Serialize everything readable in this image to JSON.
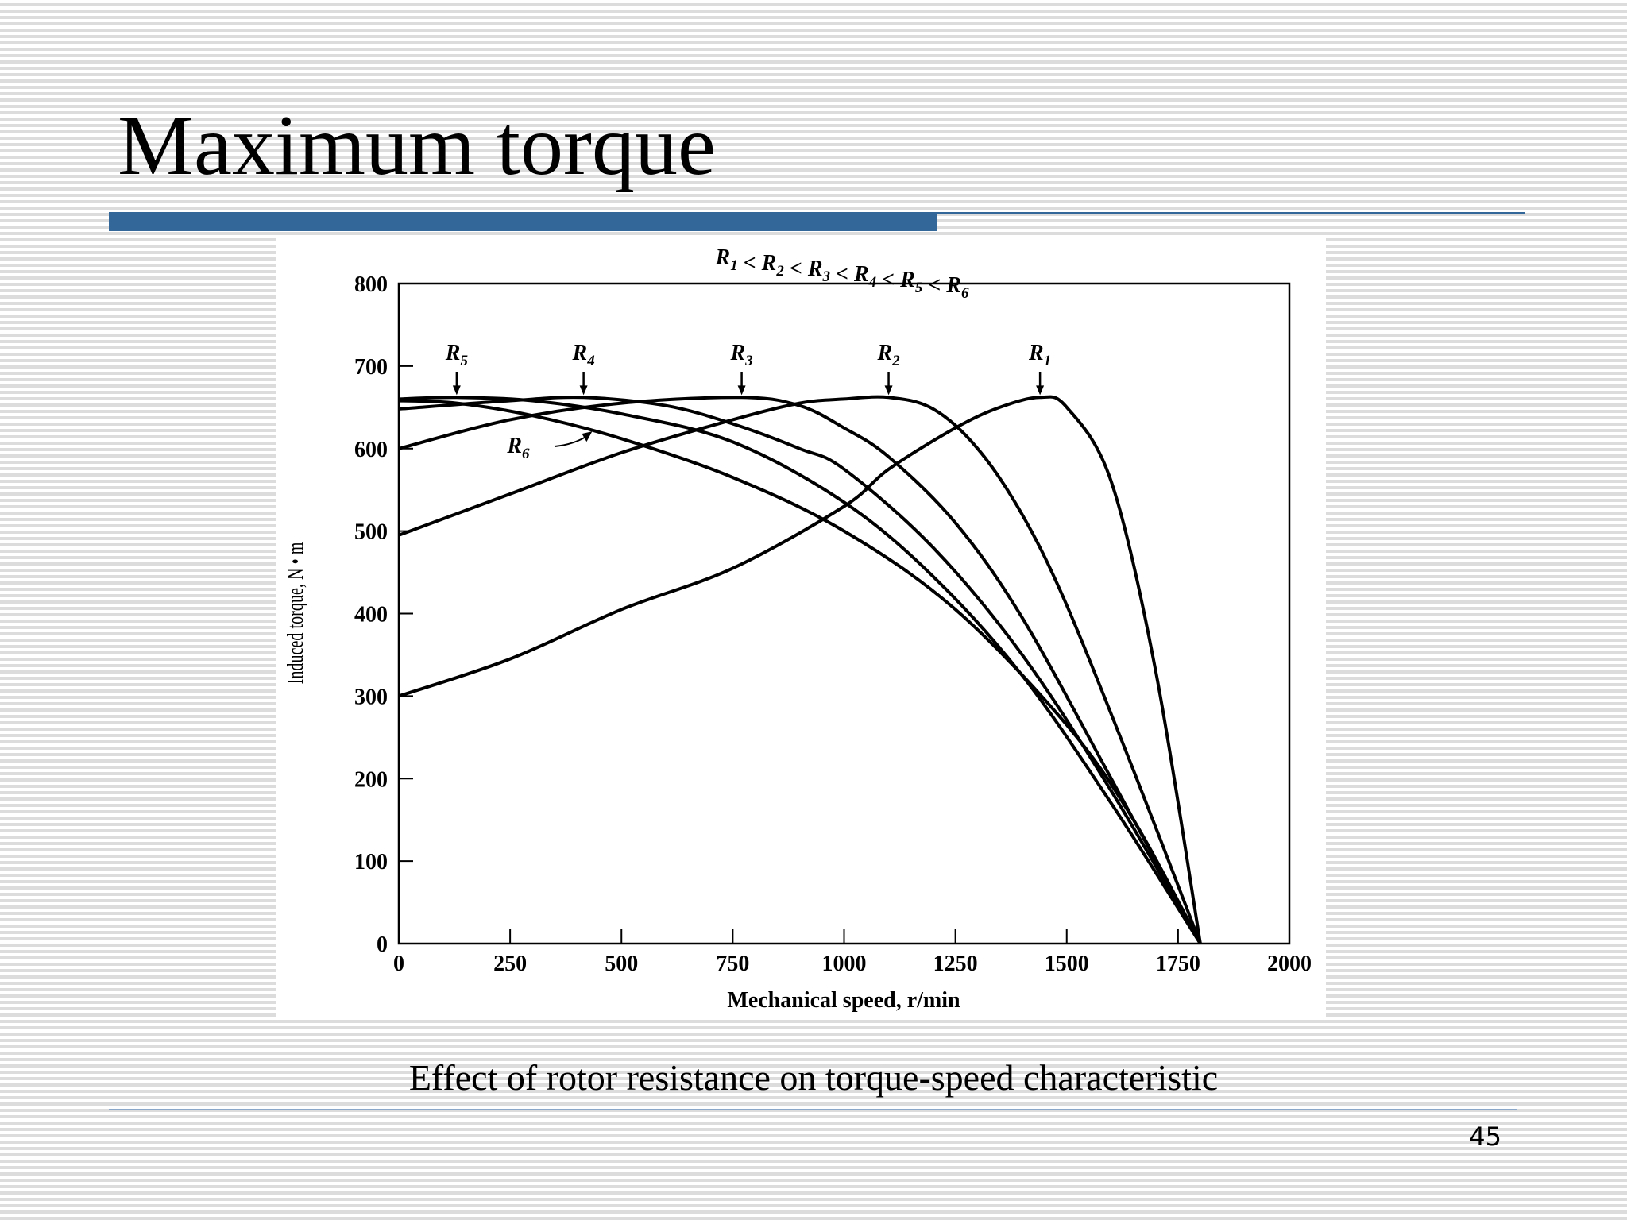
{
  "slide": {
    "title": "Maximum torque",
    "caption": "Effect of rotor resistance on torque-speed characteristic",
    "page_number": "45",
    "accent_color": "#336699"
  },
  "chart_data": {
    "type": "line",
    "title": "R1 < R2 < R3 < R4 < R5 < R6",
    "xlabel": "Mechanical speed, r/min",
    "ylabel": "Induced torque, N • m",
    "xlim": [
      0,
      2000
    ],
    "ylim": [
      0,
      800
    ],
    "x_ticks": [
      0,
      250,
      500,
      750,
      1000,
      1250,
      1500,
      1750,
      2000
    ],
    "y_ticks": [
      0,
      100,
      200,
      300,
      400,
      500,
      600,
      700,
      800
    ],
    "grid": false,
    "legend": "none",
    "line_color": "#000000",
    "series": [
      {
        "name": "R1",
        "peak_x": 1440,
        "points": [
          [
            0,
            300
          ],
          [
            250,
            345
          ],
          [
            500,
            405
          ],
          [
            750,
            455
          ],
          [
            1000,
            530
          ],
          [
            1100,
            575
          ],
          [
            1250,
            625
          ],
          [
            1350,
            650
          ],
          [
            1440,
            662
          ],
          [
            1500,
            650
          ],
          [
            1600,
            560
          ],
          [
            1700,
            330
          ],
          [
            1800,
            0
          ]
        ]
      },
      {
        "name": "R2",
        "peak_x": 1100,
        "points": [
          [
            0,
            495
          ],
          [
            250,
            545
          ],
          [
            500,
            595
          ],
          [
            750,
            635
          ],
          [
            900,
            655
          ],
          [
            1000,
            660
          ],
          [
            1100,
            662
          ],
          [
            1200,
            648
          ],
          [
            1300,
            600
          ],
          [
            1400,
            520
          ],
          [
            1500,
            410
          ],
          [
            1650,
            210
          ],
          [
            1800,
            0
          ]
        ]
      },
      {
        "name": "R3",
        "peak_x": 770,
        "points": [
          [
            0,
            600
          ],
          [
            250,
            635
          ],
          [
            500,
            655
          ],
          [
            770,
            662
          ],
          [
            900,
            652
          ],
          [
            1000,
            625
          ],
          [
            1100,
            590
          ],
          [
            1250,
            510
          ],
          [
            1400,
            395
          ],
          [
            1600,
            200
          ],
          [
            1800,
            0
          ]
        ]
      },
      {
        "name": "R4",
        "peak_x": 415,
        "points": [
          [
            0,
            648
          ],
          [
            250,
            658
          ],
          [
            415,
            662
          ],
          [
            600,
            652
          ],
          [
            750,
            630
          ],
          [
            900,
            600
          ],
          [
            1000,
            575
          ],
          [
            1200,
            480
          ],
          [
            1400,
            350
          ],
          [
            1600,
            185
          ],
          [
            1800,
            0
          ]
        ]
      },
      {
        "name": "R5",
        "peak_x": 130,
        "points": [
          [
            0,
            660
          ],
          [
            130,
            662
          ],
          [
            300,
            658
          ],
          [
            500,
            642
          ],
          [
            750,
            608
          ],
          [
            1000,
            535
          ],
          [
            1200,
            445
          ],
          [
            1400,
            325
          ],
          [
            1600,
            170
          ],
          [
            1800,
            0
          ]
        ]
      },
      {
        "name": "R6",
        "points": [
          [
            0,
            658
          ],
          [
            130,
            655
          ],
          [
            300,
            640
          ],
          [
            500,
            612
          ],
          [
            750,
            565
          ],
          [
            1000,
            500
          ],
          [
            1250,
            405
          ],
          [
            1500,
            265
          ],
          [
            1650,
            150
          ],
          [
            1800,
            0
          ]
        ]
      }
    ],
    "annotations": [
      {
        "label": "R5",
        "x": 130
      },
      {
        "label": "R4",
        "x": 415
      },
      {
        "label": "R3",
        "x": 770
      },
      {
        "label": "R2",
        "x": 1100
      },
      {
        "label": "R1",
        "x": 1440
      },
      {
        "label": "R6",
        "x": 420
      }
    ]
  }
}
